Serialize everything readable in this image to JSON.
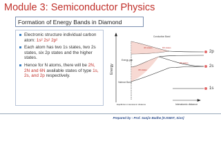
{
  "header": {
    "title": "Module 3: Semiconductor Physics",
    "subtitle": "Formation of Energy Bands in Diamond"
  },
  "bullets": [
    {
      "runs": [
        {
          "text": "Electronic structure individual carbon atom: "
        },
        {
          "text": "1s² 2s² 2p²",
          "highlight": true
        }
      ]
    },
    {
      "runs": [
        {
          "text": "Each atom has two 1s states, two 2s states, six 2p states and the higher states."
        }
      ]
    },
    {
      "runs": [
        {
          "text": "Hence for N atoms, there will be "
        },
        {
          "text": "2N, 2N and 6N",
          "highlight": true
        },
        {
          "text": " available states of type "
        },
        {
          "text": "1s, 2s, and 2p",
          "highlight": true
        },
        {
          "text": " respectively."
        }
      ]
    }
  ],
  "diagram": {
    "energy_axis": "Energy",
    "x_axis": "Interatomic distance",
    "equilibrium": "Equilibrium interatomic distance",
    "conduction_band": "Conduction Band",
    "valence_band": "Valence Band",
    "energy_gap": "Energy gap",
    "cb_states": "4N states",
    "vb_states": "4N states",
    "p_states": "6N states",
    "s_states": "2N states",
    "level_2p": "2p",
    "level_2s": "2s",
    "level_1s": "1s"
  },
  "footer": "Prepared by : Prof. Sanjiv Badhe [KJSIEIT, Sion]"
}
